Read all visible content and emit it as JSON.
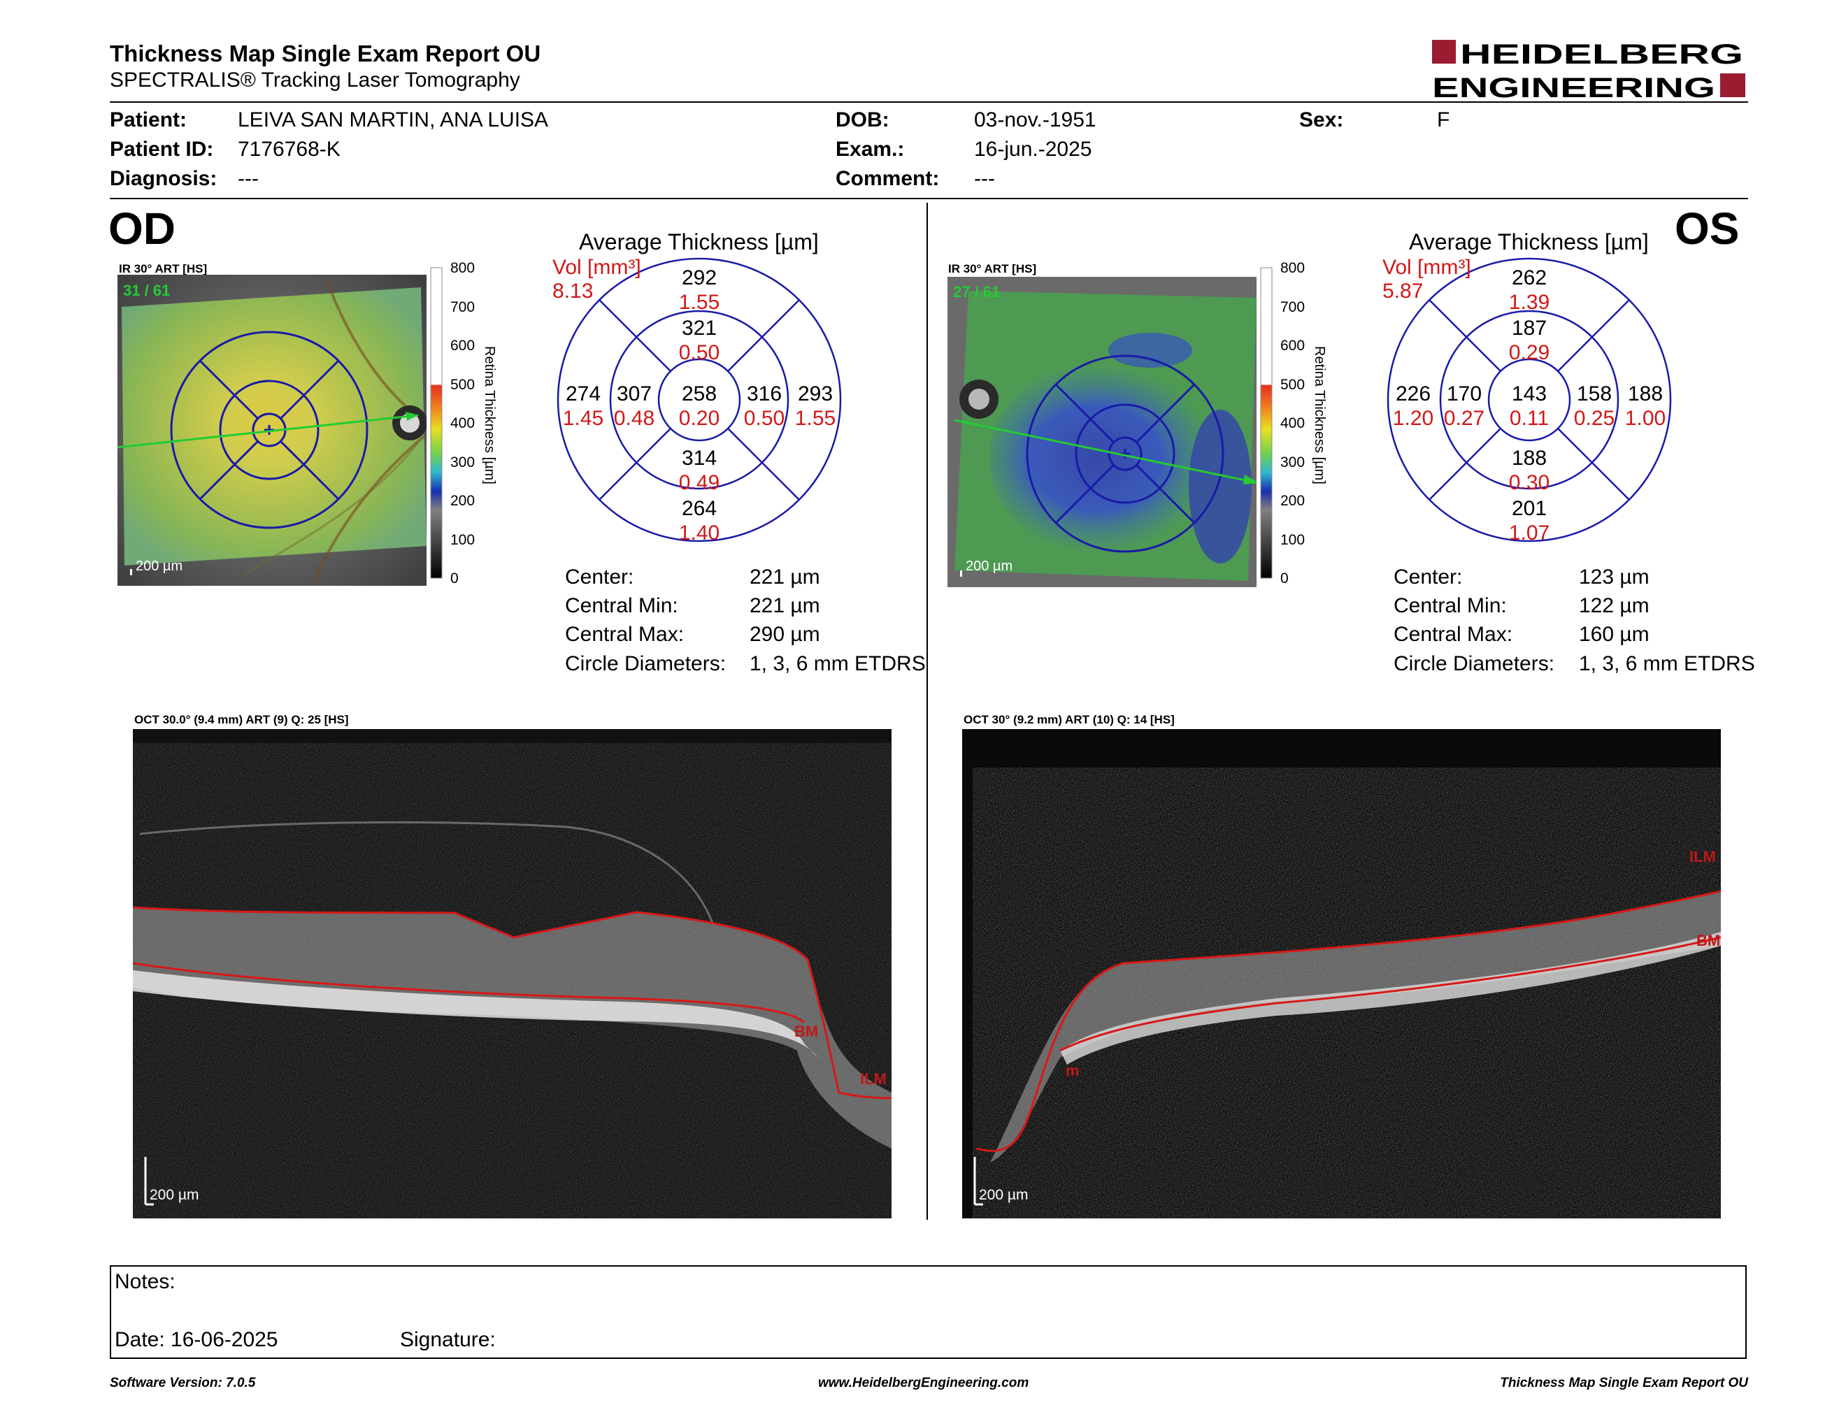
{
  "header": {
    "title": "Thickness Map Single Exam Report OU",
    "subtitle": "SPECTRALIS® Tracking Laser Tomography",
    "logo_line1": "HEIDELBERG",
    "logo_line2": "ENGINEERING",
    "brand_color": "#9b1b30"
  },
  "patient": {
    "patient_label": "Patient:",
    "patient_value": "LEIVA SAN MARTIN, ANA LUISA",
    "id_label": "Patient ID:",
    "id_value": "7176768-K",
    "diagnosis_label": "Diagnosis:",
    "diagnosis_value": "---",
    "dob_label": "DOB:",
    "dob_value": "03-nov.-1951",
    "exam_label": "Exam.:",
    "exam_value": "16-jun.-2025",
    "comment_label": "Comment:",
    "comment_value": "---",
    "sex_label": "Sex:",
    "sex_value": "F"
  },
  "scale": {
    "ticks": [
      "800",
      "700",
      "600",
      "500",
      "400",
      "300",
      "200",
      "100",
      "0"
    ],
    "axis_label": "Retina Thickness [µm]"
  },
  "od": {
    "eye": "OD",
    "ir_title": "IR 30° ART [HS]",
    "frame_count": "31 / 61",
    "scale_bar": "200 µm",
    "avg_title": "Average Thickness [µm]",
    "vol_label": "Vol [mm³]",
    "vol_total": "8.13",
    "sectors": {
      "outer_sup": {
        "thk": "292",
        "vol": "1.55"
      },
      "inner_sup": {
        "thk": "321",
        "vol": "0.50"
      },
      "outer_temp": {
        "thk": "274",
        "vol": "1.45"
      },
      "inner_temp": {
        "thk": "307",
        "vol": "0.48"
      },
      "center": {
        "thk": "258",
        "vol": "0.20"
      },
      "inner_nas": {
        "thk": "316",
        "vol": "0.50"
      },
      "outer_nas": {
        "thk": "293",
        "vol": "1.55"
      },
      "inner_inf": {
        "thk": "314",
        "vol": "0.49"
      },
      "outer_inf": {
        "thk": "264",
        "vol": "1.40"
      }
    },
    "stats": [
      {
        "label": "Center:",
        "value": "221 µm"
      },
      {
        "label": "Central Min:",
        "value": "221 µm"
      },
      {
        "label": "Central Max:",
        "value": "290 µm"
      },
      {
        "label": "Circle Diameters:",
        "value": "1, 3, 6 mm ETDRS"
      }
    ],
    "oct_title": "OCT 30.0° (9.4 mm) ART (9) Q: 25 [HS]",
    "oct_scale": "200 µm",
    "lbl_bm": "BM",
    "lbl_ilm": "ILM"
  },
  "os": {
    "eye": "OS",
    "ir_title": "IR 30° ART [HS]",
    "frame_count": "27 / 61",
    "scale_bar": "200 µm",
    "avg_title": "Average Thickness [µm]",
    "vol_label": "Vol [mm³]",
    "vol_total": "5.87",
    "sectors": {
      "outer_sup": {
        "thk": "262",
        "vol": "1.39"
      },
      "inner_sup": {
        "thk": "187",
        "vol": "0.29"
      },
      "outer_temp": {
        "thk": "226",
        "vol": "1.20"
      },
      "inner_temp": {
        "thk": "170",
        "vol": "0.27"
      },
      "center": {
        "thk": "143",
        "vol": "0.11"
      },
      "inner_nas": {
        "thk": "158",
        "vol": "0.25"
      },
      "outer_nas": {
        "thk": "188",
        "vol": "1.00"
      },
      "inner_inf": {
        "thk": "188",
        "vol": "0.30"
      },
      "outer_inf": {
        "thk": "201",
        "vol": "1.07"
      }
    },
    "stats": [
      {
        "label": "Center:",
        "value": "123 µm"
      },
      {
        "label": "Central Min:",
        "value": "122 µm"
      },
      {
        "label": "Central Max:",
        "value": "160 µm"
      },
      {
        "label": "Circle Diameters:",
        "value": "1, 3, 6 mm ETDRS"
      }
    ],
    "oct_title": "OCT 30° (9.2 mm) ART (10) Q: 14 [HS]",
    "oct_scale": "200 µm",
    "lbl_ilm": "ILM",
    "lbl_bm": "BM",
    "lbl_m": "m"
  },
  "notes": {
    "notes_label": "Notes:",
    "date_label": "Date: 16-06-2025",
    "signature_label": "Signature:"
  },
  "footer": {
    "software": "Software Version: 7.0.5",
    "website": "www.HeidelbergEngineering.com",
    "report_name": "Thickness Map Single Exam Report OU"
  }
}
